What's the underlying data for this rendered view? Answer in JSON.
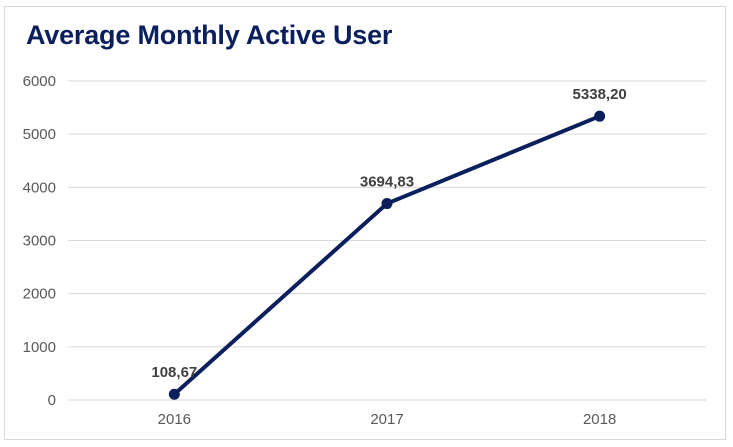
{
  "chart_data": {
    "type": "line",
    "title": "Average Monthly Active User",
    "categories": [
      "2016",
      "2017",
      "2018"
    ],
    "series": [
      {
        "values": [
          108.67,
          3694.83,
          5338.2
        ]
      }
    ],
    "data_labels": [
      "108,67",
      "3694,83",
      "5338,20"
    ],
    "y_ticks": [
      "0",
      "1000",
      "2000",
      "3000",
      "4000",
      "5000",
      "6000"
    ],
    "xlabel": "",
    "ylabel": "",
    "ylim": [
      0,
      6000
    ],
    "grid": true,
    "legend": "none",
    "colors": {
      "line": "#0b1f5c",
      "grid": "#d9d9d9",
      "title": "#0b1f5c"
    }
  }
}
